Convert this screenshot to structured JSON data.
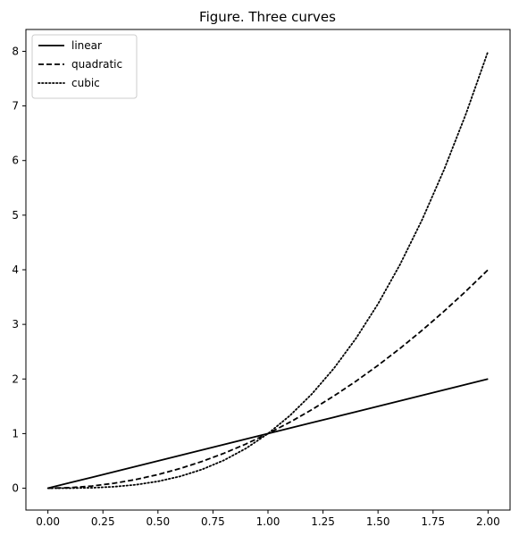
{
  "chart_data": {
    "type": "line",
    "title": "Figure. Three curves",
    "xlabel": "",
    "ylabel": "",
    "xlim": [
      -0.1,
      2.1
    ],
    "ylim": [
      -0.4,
      8.4
    ],
    "x_ticks": [
      0.0,
      0.25,
      0.5,
      0.75,
      1.0,
      1.25,
      1.5,
      1.75,
      2.0
    ],
    "x_tick_labels": [
      "0.00",
      "0.25",
      "0.50",
      "0.75",
      "1.00",
      "1.25",
      "1.50",
      "1.75",
      "2.00"
    ],
    "y_ticks": [
      0,
      1,
      2,
      3,
      4,
      5,
      6,
      7,
      8
    ],
    "y_tick_labels": [
      "0",
      "1",
      "2",
      "3",
      "4",
      "5",
      "6",
      "7",
      "8"
    ],
    "grid": false,
    "legend": {
      "position": "top-left"
    },
    "x": [
      0.0,
      0.1,
      0.2,
      0.3,
      0.4,
      0.5,
      0.6,
      0.7,
      0.8,
      0.9,
      1.0,
      1.1,
      1.2,
      1.3,
      1.4,
      1.5,
      1.6,
      1.7,
      1.8,
      1.9,
      2.0
    ],
    "series": [
      {
        "name": "linear",
        "style": "solid",
        "color": "#000000",
        "values": [
          0.0,
          0.1,
          0.2,
          0.3,
          0.4,
          0.5,
          0.6,
          0.7,
          0.8,
          0.9,
          1.0,
          1.1,
          1.2,
          1.3,
          1.4,
          1.5,
          1.6,
          1.7,
          1.8,
          1.9,
          2.0
        ]
      },
      {
        "name": "quadratic",
        "style": "dashed",
        "color": "#000000",
        "values": [
          0.0,
          0.01,
          0.04,
          0.09,
          0.16,
          0.25,
          0.36,
          0.49,
          0.64,
          0.81,
          1.0,
          1.21,
          1.44,
          1.69,
          1.96,
          2.25,
          2.56,
          2.89,
          3.24,
          3.61,
          4.0
        ]
      },
      {
        "name": "cubic",
        "style": "dotted",
        "color": "#000000",
        "values": [
          0.0,
          0.001,
          0.008,
          0.027,
          0.064,
          0.125,
          0.216,
          0.343,
          0.512,
          0.729,
          1.0,
          1.331,
          1.728,
          2.197,
          2.744,
          3.375,
          4.096,
          4.913,
          5.832,
          6.859,
          8.0
        ]
      }
    ]
  }
}
